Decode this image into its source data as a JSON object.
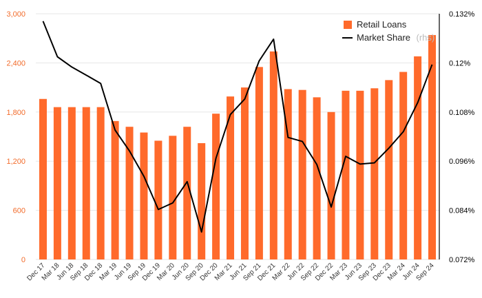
{
  "chart_data": {
    "type": "bar+line",
    "categories": [
      "Dec 17",
      "Mar 18",
      "Jun 18",
      "Sep 18",
      "Dec 18",
      "Mar 19",
      "Jun 19",
      "Sep 19",
      "Dec 19",
      "Mar 20",
      "Jun 20",
      "Sep 20",
      "Dec 20",
      "Mar 21",
      "Jun 21",
      "Sep 21",
      "Dec 21",
      "Mar 22",
      "Jun 22",
      "Sep 22",
      "Dec 22",
      "Mar 23",
      "Jun 23",
      "Sep 23",
      "Dec 23",
      "Mar 24",
      "Jun 24",
      "Sep 24"
    ],
    "series": [
      {
        "name": "Retail Loans",
        "type": "bar",
        "axis": "left",
        "color": "#ff6a2b",
        "values": [
          1960,
          1860,
          1860,
          1860,
          1860,
          1690,
          1620,
          1550,
          1450,
          1510,
          1620,
          1420,
          1780,
          1990,
          2100,
          2350,
          2540,
          2080,
          2070,
          1980,
          1800,
          2060,
          2060,
          2090,
          2190,
          2290,
          2480,
          2740
        ]
      },
      {
        "name": "Market Share",
        "name_suffix": "(rhs)",
        "type": "line",
        "axis": "right",
        "color": "#000000",
        "values": [
          0.1302,
          0.1215,
          0.119,
          0.117,
          0.115,
          0.1036,
          0.0985,
          0.0923,
          0.0842,
          0.0858,
          0.091,
          0.0787,
          0.0967,
          0.1074,
          0.1112,
          0.1205,
          0.1258,
          0.1018,
          0.1008,
          0.0952,
          0.0848,
          0.0972,
          0.0953,
          0.0956,
          0.0992,
          0.1032,
          0.1103,
          0.1196
        ]
      }
    ],
    "y_left": {
      "ylim": [
        0,
        3000
      ],
      "ticks": [
        0,
        600,
        1200,
        1800,
        2400,
        3000
      ],
      "tick_labels": [
        "0",
        "600",
        "1,200",
        "1,800",
        "2,400",
        "3,000"
      ]
    },
    "y_right": {
      "ylim": [
        0.072,
        0.132
      ],
      "ticks": [
        0.072,
        0.084,
        0.096,
        0.108,
        0.12,
        0.132
      ],
      "tick_labels": [
        "0.072%",
        "0.084%",
        "0.096%",
        "0.108%",
        "0.12%",
        "0.132%"
      ]
    },
    "grid": true,
    "legend": "top-right"
  }
}
